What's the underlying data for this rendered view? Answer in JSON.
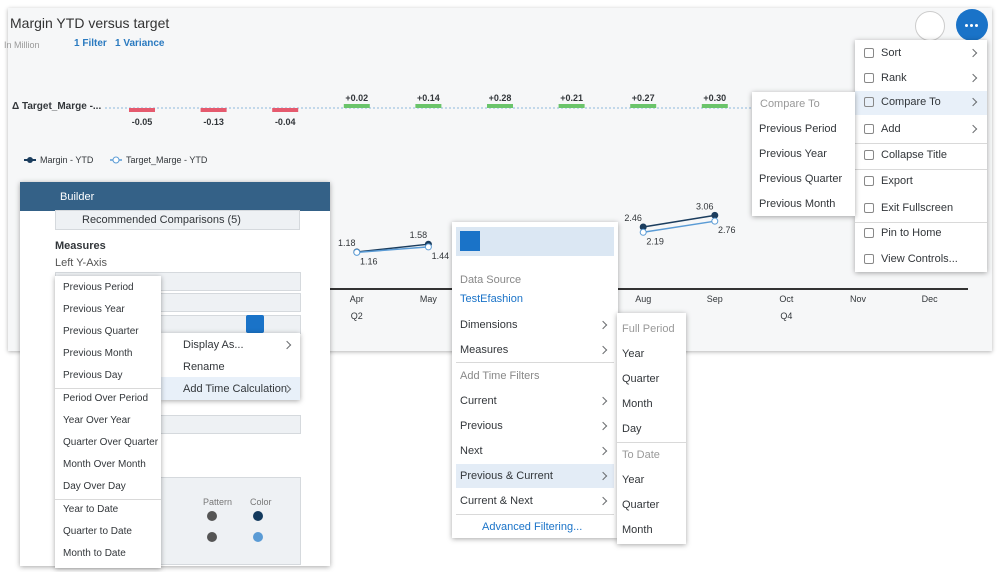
{
  "chart": {
    "title": "Margin YTD versus target",
    "unit": "In Million",
    "filter": "1 Filter",
    "variance": "1 Variance",
    "variance_row_label": "Δ Target_Marge -...",
    "variance_values": [
      -0.05,
      -0.13,
      -0.04,
      0.02,
      0.14,
      0.28,
      0.21,
      0.27,
      0.3,
      null,
      null,
      null
    ],
    "variance_labels": [
      "-0.05",
      "-0.13",
      "-0.04",
      "+0.02",
      "+0.14",
      "+0.28",
      "+0.21",
      "+0.27",
      "+0.30",
      null,
      null,
      null
    ],
    "legend": [
      "Margin - YTD",
      "Target_Marge - YTD"
    ],
    "months": [
      null,
      null,
      null,
      "Apr",
      "May",
      null,
      null,
      "Aug",
      "Sep",
      "Oct",
      "Nov",
      "Dec"
    ],
    "quarters": [
      null,
      null,
      null,
      "Q2",
      null,
      null,
      null,
      null,
      null,
      "Q4",
      null,
      null
    ],
    "margin_ytd": [
      null,
      null,
      null,
      1.18,
      1.58,
      null,
      null,
      2.46,
      3.06,
      null,
      null,
      null
    ],
    "target_ytd": [
      null,
      null,
      null,
      1.16,
      1.44,
      null,
      null,
      2.19,
      2.76,
      null,
      null,
      null
    ]
  },
  "more_menu": {
    "items": [
      "Sort",
      "Rank",
      "Compare To",
      "Add",
      "Collapse Title",
      "Export",
      "Exit Fullscreen",
      "Pin to Home",
      "View Controls..."
    ]
  },
  "compare_menu": {
    "header": "Compare To",
    "items": [
      "Previous Period",
      "Previous Year",
      "Previous Quarter",
      "Previous Month"
    ]
  },
  "builder": {
    "title": "Builder",
    "recommended": "Recommended Comparisons (5)",
    "measures": "Measures",
    "axis": "Left Y-Axis",
    "pattern": "Pattern",
    "color": "Color"
  },
  "time_calc_menu": {
    "items": [
      "Previous Period",
      "Previous Year",
      "Previous Quarter",
      "Previous Month",
      "Previous Day",
      "Period Over Period",
      "Year Over Year",
      "Quarter Over Quarter",
      "Month Over Month",
      "Day Over Day",
      "Year to Date",
      "Quarter to Date",
      "Month to Date"
    ]
  },
  "measure_menu": {
    "items": [
      "Display As...",
      "Rename",
      "Add Time Calculation"
    ]
  },
  "filter_menu": {
    "data_source_label": "Data Source",
    "data_source": "TestEfashion",
    "items": [
      "Dimensions",
      "Measures"
    ],
    "time_label": "Add Time Filters",
    "time_items": [
      "Current",
      "Previous",
      "Next",
      "Previous & Current",
      "Current & Next"
    ],
    "advanced": "Advanced Filtering..."
  },
  "period_menu": {
    "full_label": "Full Period",
    "full_items": [
      "Year",
      "Quarter",
      "Month",
      "Day"
    ],
    "to_date_label": "To Date",
    "to_date_items": [
      "Year",
      "Quarter",
      "Month"
    ]
  }
}
